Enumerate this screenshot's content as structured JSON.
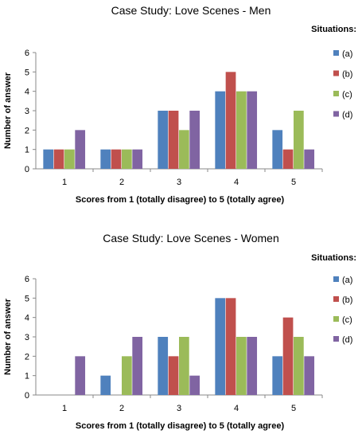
{
  "chart_data": [
    {
      "type": "bar",
      "title": "Case Study: Love Scenes - Men",
      "xlabel": "Scores from 1 (totally disagree) to 5 (totally agree)",
      "ylabel": "Number of answer",
      "ylim": [
        0,
        6
      ],
      "yticks": [
        "0",
        "1",
        "2",
        "3",
        "4",
        "5",
        "6"
      ],
      "categories": [
        "1",
        "2",
        "3",
        "4",
        "5"
      ],
      "legend_title": "Situations:",
      "legend_position": "right",
      "series": [
        {
          "name": "(a)",
          "color": "#4F81BD",
          "values": [
            1,
            1,
            3,
            4,
            2
          ]
        },
        {
          "name": "(b)",
          "color": "#C0504D",
          "values": [
            1,
            1,
            3,
            5,
            1
          ]
        },
        {
          "name": "(c)",
          "color": "#9BBB59",
          "values": [
            1,
            1,
            2,
            4,
            3
          ]
        },
        {
          "name": "(d)",
          "color": "#8064A2",
          "values": [
            2,
            1,
            3,
            4,
            1
          ]
        }
      ]
    },
    {
      "type": "bar",
      "title": "Case Study: Love Scenes - Women",
      "xlabel": "Scores from 1 (totally disagree) to 5 (totally agree)",
      "ylabel": "Number of answer",
      "ylim": [
        0,
        6
      ],
      "yticks": [
        "0",
        "1",
        "2",
        "3",
        "4",
        "5",
        "6"
      ],
      "categories": [
        "1",
        "2",
        "3",
        "4",
        "5"
      ],
      "legend_title": "Situations:",
      "legend_position": "right",
      "series": [
        {
          "name": "(a)",
          "color": "#4F81BD",
          "values": [
            0,
            1,
            3,
            5,
            2
          ]
        },
        {
          "name": "(b)",
          "color": "#C0504D",
          "values": [
            0,
            0,
            2,
            5,
            4
          ]
        },
        {
          "name": "(c)",
          "color": "#9BBB59",
          "values": [
            0,
            2,
            3,
            3,
            3
          ]
        },
        {
          "name": "(d)",
          "color": "#8064A2",
          "values": [
            2,
            3,
            1,
            3,
            2
          ]
        }
      ]
    }
  ]
}
